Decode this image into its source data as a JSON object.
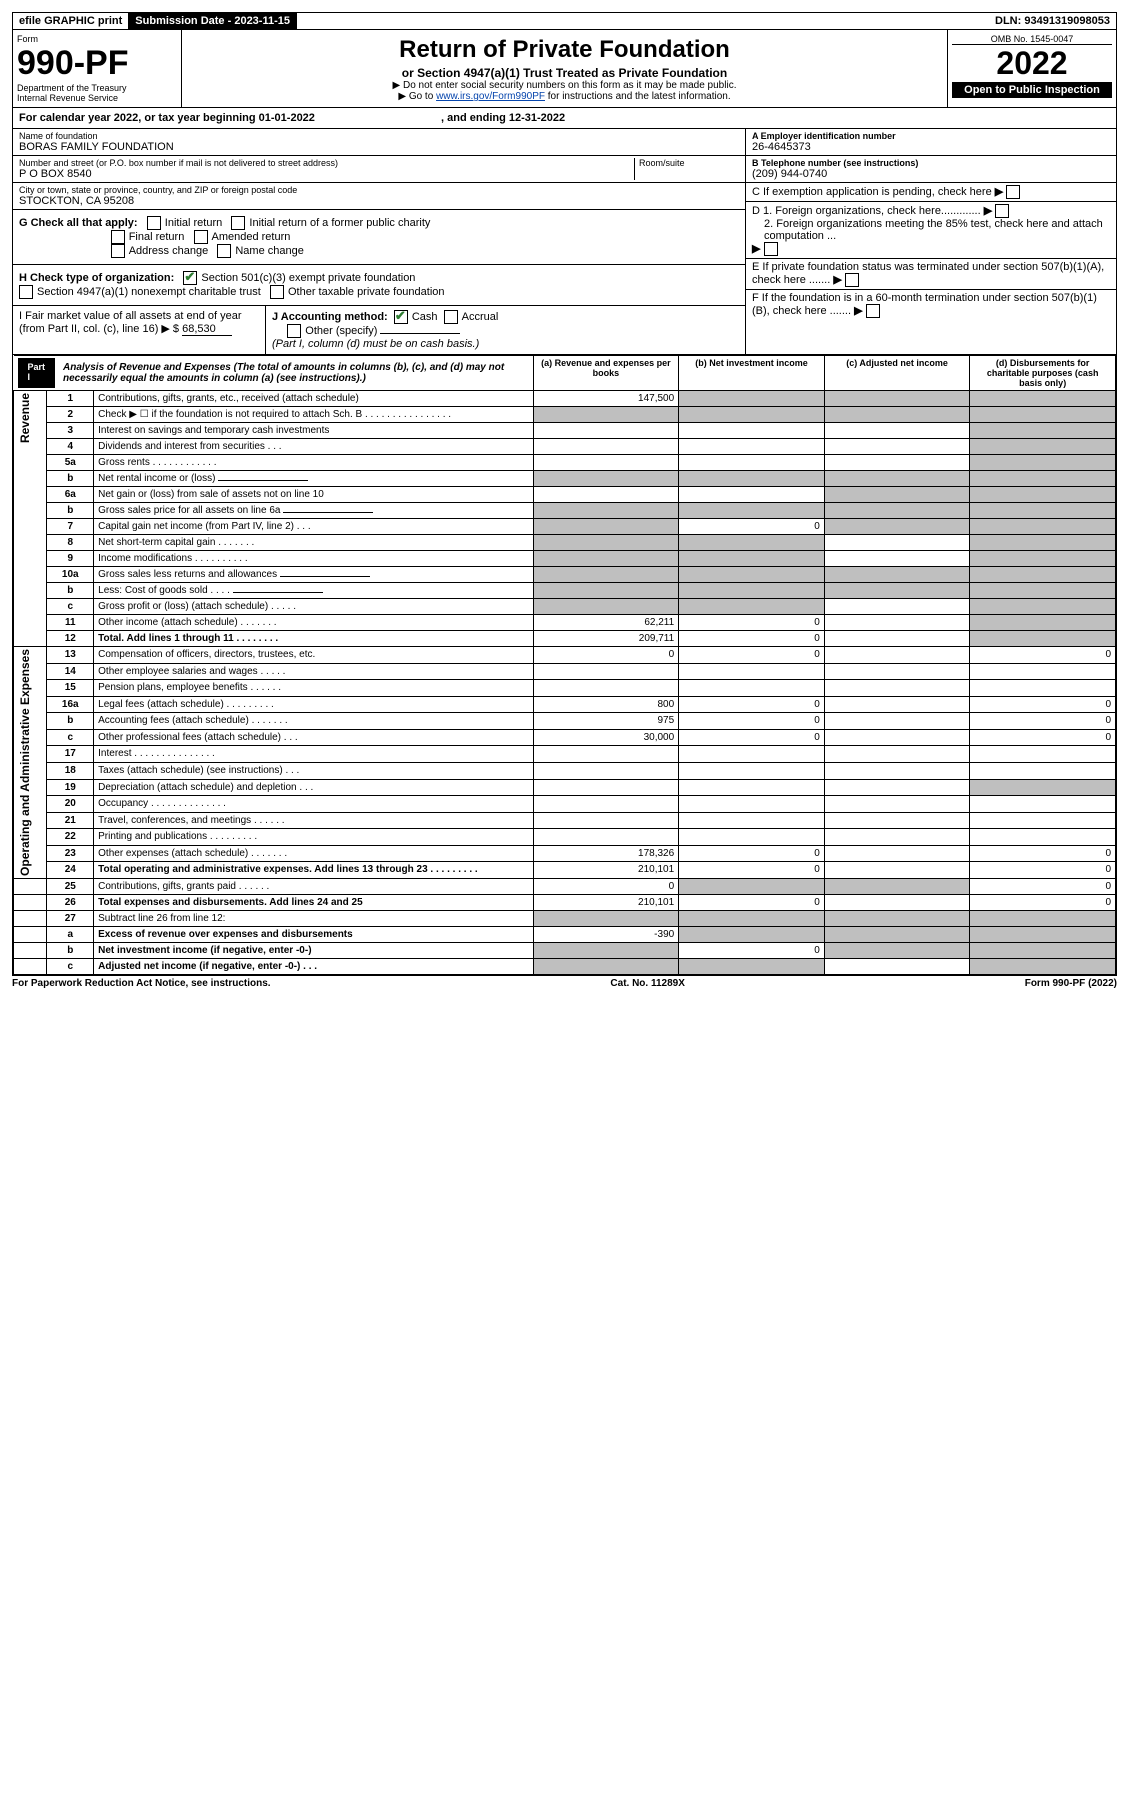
{
  "topbar": {
    "efile": "efile GRAPHIC print",
    "subdate_label": "Submission Date - ",
    "subdate": "2023-11-15",
    "dln_label": "DLN: ",
    "dln": "93491319098053"
  },
  "hdr": {
    "form": "Form",
    "formno": "990-PF",
    "dept": "Department of the Treasury",
    "irs": "Internal Revenue Service",
    "title": "Return of Private Foundation",
    "subtitle": "or Section 4947(a)(1) Trust Treated as Private Foundation",
    "instr1": "▶ Do not enter social security numbers on this form as it may be made public.",
    "instr2a": "▶ Go to ",
    "instr2link": "www.irs.gov/Form990PF",
    "instr2b": " for instructions and the latest information.",
    "omb": "OMB No. 1545-0047",
    "year": "2022",
    "open": "Open to Public Inspection"
  },
  "cal": {
    "a": "For calendar year 2022, or tax year beginning 01-01-2022",
    "b": ", and ending 12-31-2022"
  },
  "info": {
    "namelbl": "Name of foundation",
    "name": "BORAS FAMILY FOUNDATION",
    "addrlbl": "Number and street (or P.O. box number if mail is not delivered to street address)",
    "addr": "P O BOX 8540",
    "roomlbl": "Room/suite",
    "citylbl": "City or town, state or province, country, and ZIP or foreign postal code",
    "city": "STOCKTON, CA  95208",
    "a": "A Employer identification number",
    "ein": "26-4645373",
    "b": "B Telephone number (see instructions)",
    "phone": "(209) 944-0740",
    "c": "C If exemption application is pending, check here",
    "d1": "D 1. Foreign organizations, check here.............",
    "d2": "2. Foreign organizations meeting the 85% test, check here and attach computation  ...",
    "e": "E  If private foundation status was terminated under section 507(b)(1)(A), check here .......",
    "f": "F  If the foundation is in a 60-month termination under section 507(b)(1)(B), check here .......",
    "g": "G Check all that apply:",
    "g1": "Initial return",
    "g2": "Final return",
    "g3": "Address change",
    "g4": "Initial return of a former public charity",
    "g5": "Amended return",
    "g6": "Name change",
    "h": "H Check type of organization:",
    "h1": "Section 501(c)(3) exempt private foundation",
    "h2": "Section 4947(a)(1) nonexempt charitable trust",
    "h3": "Other taxable private foundation",
    "i": "I Fair market value of all assets at end of year (from Part II, col. (c), line 16) ▶ $",
    "ival": "68,530",
    "j": "J Accounting method:",
    "j1": "Cash",
    "j2": "Accrual",
    "j3": "Other (specify)",
    "jnote": "(Part I, column (d) must be on cash basis.)"
  },
  "part1": {
    "tab": "Part I",
    "title": "Analysis of Revenue and Expenses",
    "note": "(The total of amounts in columns (b), (c), and (d) may not necessarily equal the amounts in column (a) (see instructions).)",
    "cola": "(a)   Revenue and expenses per books",
    "colb": "(b)   Net investment income",
    "colc": "(c)  Adjusted net income",
    "cold": "(d)  Disbursements for charitable purposes (cash basis only)"
  },
  "side": {
    "rev": "Revenue",
    "op": "Operating and Administrative Expenses"
  },
  "rows": [
    {
      "n": "1",
      "t": "Contributions, gifts, grants, etc., received (attach schedule)",
      "a": "147,500",
      "sb": "1",
      "sc": "1",
      "sd": "1"
    },
    {
      "n": "2",
      "t": "Check ▶ ☐ if the foundation is not required to attach Sch. B     .  .  .  .  .  .  .  .  .  .  .  .  .  .  .  .",
      "sa": "1",
      "sb": "1",
      "sc": "1",
      "sd": "1"
    },
    {
      "n": "3",
      "t": "Interest on savings and temporary cash investments",
      "sd": "1"
    },
    {
      "n": "4",
      "t": "Dividends and interest from securities    .   .   .",
      "sd": "1"
    },
    {
      "n": "5a",
      "t": "Gross rents     .   .   .   .   .   .   .   .   .   .   .   .",
      "sd": "1"
    },
    {
      "n": "b",
      "t": "Net rental income or (loss)  ",
      "blank": 1,
      "sa": "1",
      "sb": "1",
      "sc": "1",
      "sd": "1"
    },
    {
      "n": "6a",
      "t": "Net gain or (loss) from sale of assets not on line 10",
      "sc": "1",
      "sd": "1"
    },
    {
      "n": "b",
      "t": "Gross sales price for all assets on line 6a",
      "blank": 1,
      "sa": "1",
      "sb": "1",
      "sc": "1",
      "sd": "1"
    },
    {
      "n": "7",
      "t": "Capital gain net income (from Part IV, line 2)   .   .   .",
      "sa": "1",
      "b": "0",
      "sc": "1",
      "sd": "1"
    },
    {
      "n": "8",
      "t": "Net short-term capital gain   .   .   .   .   .   .   .",
      "sa": "1",
      "sb": "1",
      "sd": "1"
    },
    {
      "n": "9",
      "t": "Income modifications  .   .   .   .   .   .   .   .   .   .",
      "sa": "1",
      "sb": "1",
      "sd": "1"
    },
    {
      "n": "10a",
      "t": "Gross sales less returns and allowances",
      "blank": 1,
      "sa": "1",
      "sb": "1",
      "sc": "1",
      "sd": "1"
    },
    {
      "n": "b",
      "t": "Less: Cost of goods sold    .   .   .   .",
      "blank": 1,
      "sa": "1",
      "sb": "1",
      "sc": "1",
      "sd": "1"
    },
    {
      "n": "c",
      "t": "Gross profit or (loss) (attach schedule)     .   .   .   .   .",
      "sa": "1",
      "sb": "1",
      "sd": "1"
    },
    {
      "n": "11",
      "t": "Other income (attach schedule)    .   .   .   .   .   .   .",
      "a": "62,211",
      "b": "0",
      "sd": "1"
    },
    {
      "n": "12",
      "t": "Total. Add lines 1 through 11    .   .   .   .   .   .   .   .",
      "bold": 1,
      "a": "209,711",
      "b": "0",
      "sd": "1"
    },
    {
      "n": "13",
      "t": "Compensation of officers, directors, trustees, etc.",
      "a": "0",
      "b": "0",
      "d": "0"
    },
    {
      "n": "14",
      "t": "Other employee salaries and wages    .   .   .   .   ."
    },
    {
      "n": "15",
      "t": "Pension plans, employee benefits   .   .   .   .   .   ."
    },
    {
      "n": "16a",
      "t": "Legal fees (attach schedule)  .   .   .   .   .   .   .   .   .",
      "a": "800",
      "b": "0",
      "d": "0"
    },
    {
      "n": "b",
      "t": "Accounting fees (attach schedule)  .   .   .   .   .   .   .",
      "a": "975",
      "b": "0",
      "d": "0"
    },
    {
      "n": "c",
      "t": "Other professional fees (attach schedule)     .   .   .",
      "a": "30,000",
      "b": "0",
      "d": "0"
    },
    {
      "n": "17",
      "t": "Interest  .   .   .   .   .   .   .   .   .   .   .   .   .   .   ."
    },
    {
      "n": "18",
      "t": "Taxes (attach schedule) (see instructions)    .   .   ."
    },
    {
      "n": "19",
      "t": "Depreciation (attach schedule) and depletion    .   .   .",
      "sd": "1"
    },
    {
      "n": "20",
      "t": "Occupancy  .   .   .   .   .   .   .   .   .   .   .   .   .   ."
    },
    {
      "n": "21",
      "t": "Travel, conferences, and meetings  .   .   .   .   .   ."
    },
    {
      "n": "22",
      "t": "Printing and publications  .   .   .   .   .   .   .   .   ."
    },
    {
      "n": "23",
      "t": "Other expenses (attach schedule)  .   .   .   .   .   .   .",
      "a": "178,326",
      "b": "0",
      "d": "0"
    },
    {
      "n": "24",
      "t": "Total operating and administrative expenses. Add lines 13 through 23   .   .   .   .   .   .   .   .   .",
      "bold": 1,
      "a": "210,101",
      "b": "0",
      "d": "0"
    },
    {
      "n": "25",
      "t": "Contributions, gifts, grants paid     .   .   .   .   .   .",
      "a": "0",
      "sb": "1",
      "sc": "1",
      "d": "0"
    },
    {
      "n": "26",
      "t": "Total expenses and disbursements. Add lines 24 and 25",
      "bold": 1,
      "a": "210,101",
      "b": "0",
      "d": "0"
    },
    {
      "n": "27",
      "t": "Subtract line 26 from line 12:",
      "sa": "1",
      "sb": "1",
      "sc": "1",
      "sd": "1"
    },
    {
      "n": "a",
      "t": "Excess of revenue over expenses and disbursements",
      "bold": 1,
      "a": "-390",
      "sb": "1",
      "sc": "1",
      "sd": "1"
    },
    {
      "n": "b",
      "t": "Net investment income (if negative, enter -0-)",
      "bold": 1,
      "sa": "1",
      "b": "0",
      "sc": "1",
      "sd": "1"
    },
    {
      "n": "c",
      "t": "Adjusted net income (if negative, enter -0-)   .   .   .",
      "bold": 1,
      "sa": "1",
      "sb": "1",
      "sd": "1"
    }
  ],
  "footer": {
    "l": "For Paperwork Reduction Act Notice, see instructions.",
    "c": "Cat. No. 11289X",
    "r": "Form 990-PF (2022)"
  }
}
